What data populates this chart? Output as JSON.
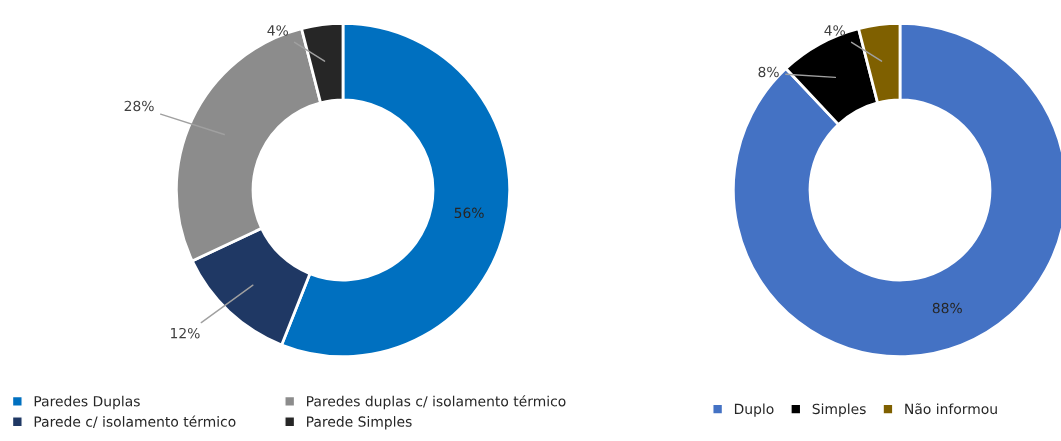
{
  "chart_data": [
    {
      "type": "donut",
      "categories": [
        "Paredes Duplas",
        "Parede c/ isolamento térmico",
        "Paredes duplas c/ isolamento térmico",
        "Parede Simples"
      ],
      "values": [
        56,
        12,
        28,
        4
      ],
      "colors": [
        "#0070c0",
        "#1f3864",
        "#8c8c8c",
        "#262626"
      ],
      "value_labels": [
        "56%",
        "12%",
        "28%",
        "4%"
      ],
      "legend": "bottom"
    },
    {
      "type": "donut",
      "categories": [
        "Duplo",
        "Simples",
        "Não informou"
      ],
      "values": [
        88,
        8,
        4
      ],
      "colors": [
        "#4472c4",
        "#000000",
        "#7f6000"
      ],
      "value_labels": [
        "88%",
        "8%",
        "4%"
      ],
      "legend": "bottom"
    }
  ]
}
